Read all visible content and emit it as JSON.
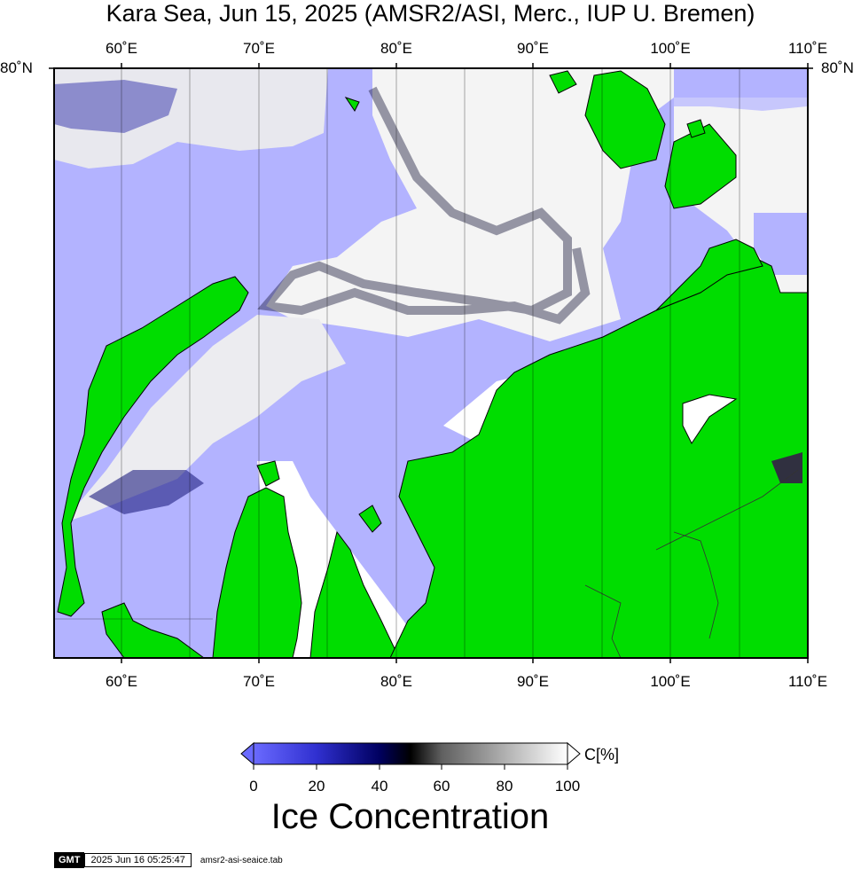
{
  "title": "Kara Sea, Jun 15, 2025 (AMSR2/ASI, Merc., IUP U. Bremen)",
  "map": {
    "top_lon_labels": [
      "60˚E",
      "70˚E",
      "80˚E",
      "90˚E",
      "100˚E",
      "110˚E"
    ],
    "bottom_lon_labels": [
      "60˚E",
      "70˚E",
      "80˚E",
      "90˚E",
      "100˚E",
      "110˚E"
    ],
    "lat_label_left": "80˚N",
    "lat_label_right": "80˚N",
    "colors": {
      "land": "#00dd00",
      "open_water": "#b3b3ff",
      "ice_full": "#ffffff",
      "coast": "#000000"
    }
  },
  "colorbar": {
    "tick_labels": [
      "0",
      "20",
      "40",
      "60",
      "80",
      "100"
    ],
    "unit": "C[%]",
    "title": "Ice Concentration",
    "stops": [
      "#6a6aff",
      "#3030d0",
      "#000060",
      "#000000",
      "#606060",
      "#b0b0b0",
      "#ffffff"
    ]
  },
  "footer": {
    "logo": "GMT",
    "timestamp": "2025 Jun 16 05:25:47",
    "filename": "amsr2-asi-seaice.tab"
  }
}
